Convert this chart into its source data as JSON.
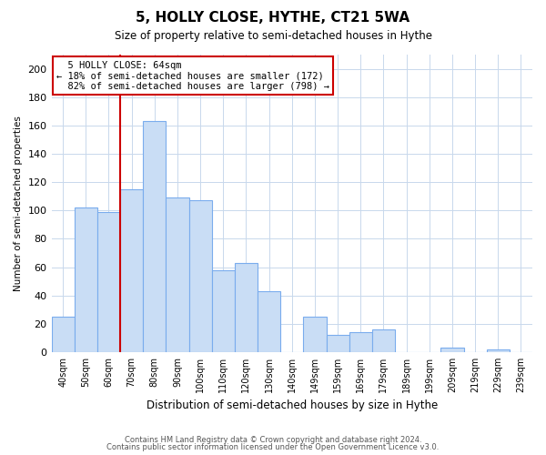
{
  "title": "5, HOLLY CLOSE, HYTHE, CT21 5WA",
  "subtitle": "Size of property relative to semi-detached houses in Hythe",
  "xlabel": "Distribution of semi-detached houses by size in Hythe",
  "ylabel": "Number of semi-detached properties",
  "bar_labels": [
    "40sqm",
    "50sqm",
    "60sqm",
    "70sqm",
    "80sqm",
    "90sqm",
    "100sqm",
    "110sqm",
    "120sqm",
    "130sqm",
    "140sqm",
    "149sqm",
    "159sqm",
    "169sqm",
    "179sqm",
    "189sqm",
    "199sqm",
    "209sqm",
    "219sqm",
    "229sqm",
    "239sqm"
  ],
  "bar_heights": [
    25,
    102,
    99,
    115,
    163,
    109,
    107,
    58,
    63,
    43,
    0,
    25,
    12,
    14,
    16,
    0,
    0,
    3,
    0,
    2,
    0
  ],
  "bar_color": "#c9ddf5",
  "bar_edge_color": "#7aaced",
  "vline_color": "#cc0000",
  "annotation_box_edge_color": "#cc0000",
  "ylim": [
    0,
    210
  ],
  "yticks": [
    0,
    20,
    40,
    60,
    80,
    100,
    120,
    140,
    160,
    180,
    200
  ],
  "prop_label": "5 HOLLY CLOSE: 64sqm",
  "pct_smaller": 18,
  "pct_larger": 82,
  "n_smaller": 172,
  "n_larger": 798,
  "footer_line1": "Contains HM Land Registry data © Crown copyright and database right 2024.",
  "footer_line2": "Contains public sector information licensed under the Open Government Licence v3.0.",
  "background_color": "#ffffff",
  "grid_color": "#c8d8ec"
}
